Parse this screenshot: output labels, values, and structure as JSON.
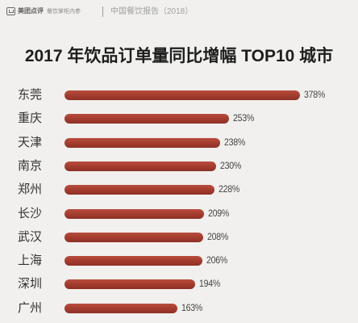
{
  "header": {
    "brand": "美团点评",
    "column": "餐饮掌柜内参",
    "report": "中国餐饮报告（2018）"
  },
  "colors": {
    "background": "#f1f0ee",
    "bar": "#a43d2f",
    "title": "#1e1e1e",
    "label": "#333333"
  },
  "chart_data": {
    "type": "bar",
    "orientation": "horizontal",
    "title": "2017 年饮品订单量同比增幅 TOP10 城市",
    "categories": [
      "东莞",
      "重庆",
      "天津",
      "南京",
      "郑州",
      "长沙",
      "武汉",
      "上海",
      "深圳",
      "广州"
    ],
    "values": [
      378,
      253,
      238,
      230,
      228,
      209,
      208,
      206,
      194,
      163
    ],
    "data_labels": [
      "378%",
      "253%",
      "238%",
      "230%",
      "228%",
      "209%",
      "208%",
      "206%",
      "194%",
      "163%"
    ],
    "unit": "%",
    "xlabel": "",
    "ylabel": "",
    "grid": false,
    "legend": "none",
    "axes_visible": false
  }
}
